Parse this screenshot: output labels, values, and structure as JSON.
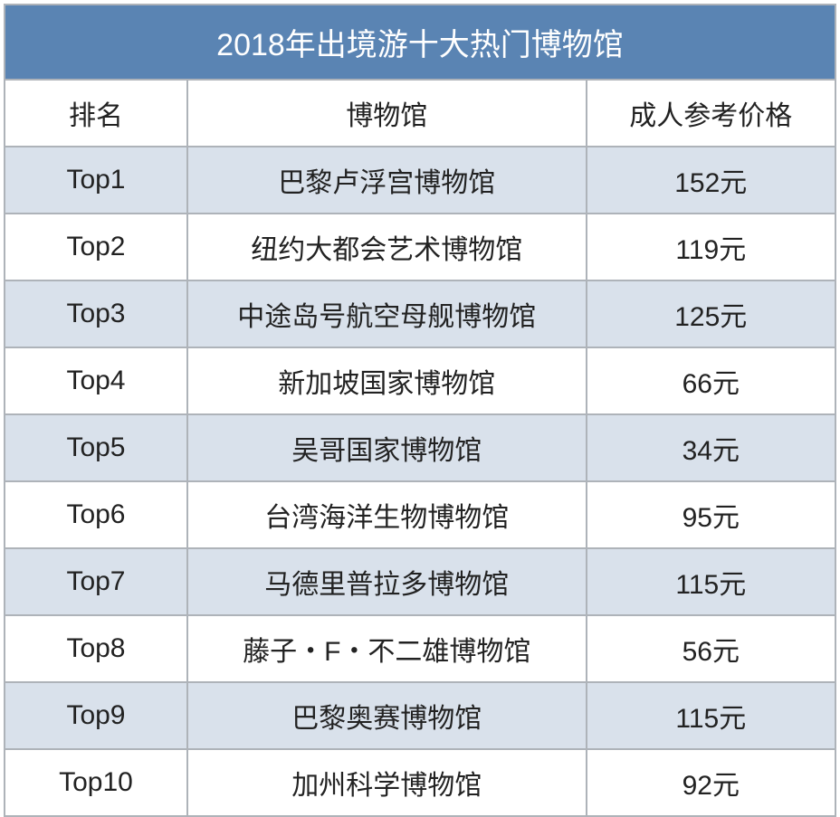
{
  "table": {
    "title": "2018年出境游十大热门博物馆",
    "columns": [
      "排名",
      "博物馆",
      "成人参考价格"
    ],
    "rows": [
      [
        "Top1",
        "巴黎卢浮宫博物馆",
        "152元"
      ],
      [
        "Top2",
        "纽约大都会艺术博物馆",
        "119元"
      ],
      [
        "Top3",
        "中途岛号航空母舰博物馆",
        "125元"
      ],
      [
        "Top4",
        "新加坡国家博物馆",
        "66元"
      ],
      [
        "Top5",
        "吴哥国家博物馆",
        "34元"
      ],
      [
        "Top6",
        "台湾海洋生物博物馆",
        "95元"
      ],
      [
        "Top7",
        "马德里普拉多博物馆",
        "115元"
      ],
      [
        "Top8",
        "藤子・F・不二雄博物馆",
        "56元"
      ],
      [
        "Top9",
        "巴黎奥赛博物馆",
        "115元"
      ],
      [
        "Top10",
        "加州科学博物馆",
        "92元"
      ]
    ],
    "style": {
      "title_bg": "#5a84b3",
      "title_color": "#ffffff",
      "header_bg": "#ffffff",
      "row_odd_bg": "#d9e1eb",
      "row_even_bg": "#ffffff",
      "border_color": "#aeb3b9",
      "body_text_color": "#222222",
      "title_fontsize": 34,
      "body_fontsize": 30
    }
  }
}
